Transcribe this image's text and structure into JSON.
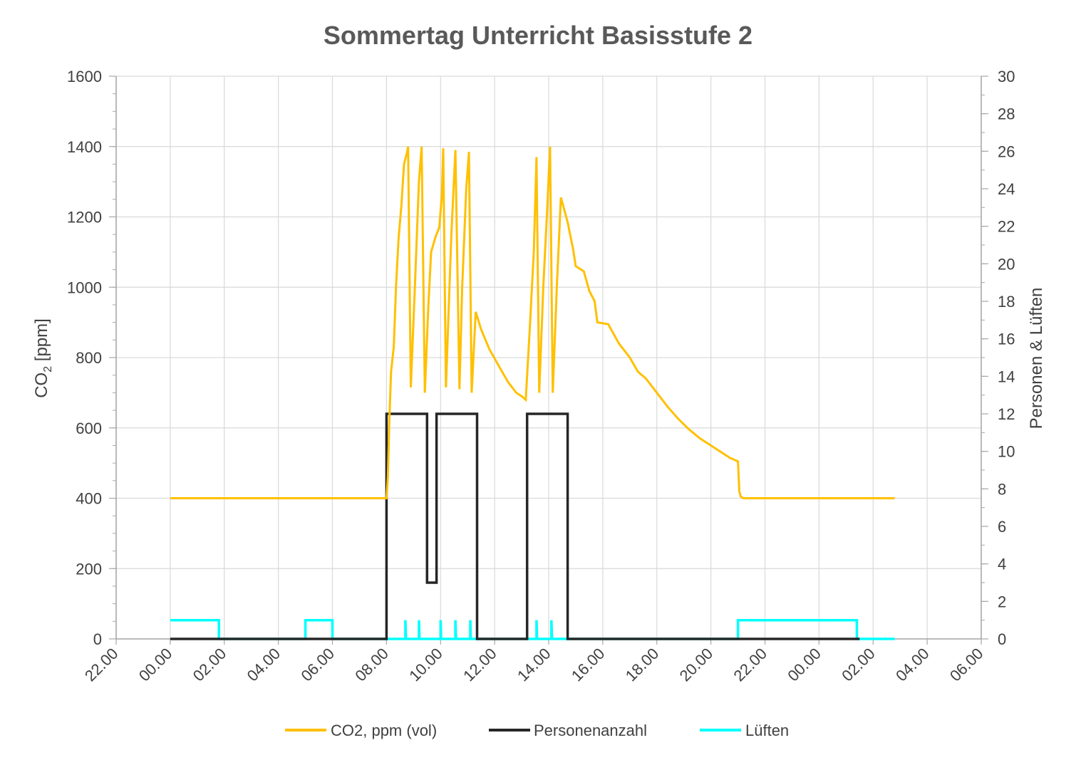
{
  "chart_data": {
    "type": "line",
    "title": "Sommertag Unterricht Basisstufe 2",
    "ylabel_left": "CO2 [ppm]",
    "ylabel_left_prefix": "CO",
    "ylabel_left_subscript": "2",
    "ylabel_left_suffix": " [ppm]",
    "ylabel_right": "Personen & Lüften",
    "x_unit": "hours",
    "xlim": [
      22,
      54
    ],
    "x_ticks": [
      22,
      24,
      26,
      28,
      30,
      32,
      34,
      36,
      38,
      40,
      42,
      44,
      46,
      48,
      50,
      52,
      54
    ],
    "x_tick_labels": [
      "22.00",
      "00.00",
      "02.00",
      "04.00",
      "06.00",
      "08.00",
      "10.00",
      "12.00",
      "14.00",
      "16.00",
      "18.00",
      "20.00",
      "22.00",
      "00.00",
      "02.00",
      "04.00",
      "06.00"
    ],
    "ylim_left": [
      0,
      1600
    ],
    "y_ticks_left": [
      0,
      200,
      400,
      600,
      800,
      1000,
      1200,
      1400,
      1600
    ],
    "ylim_right": [
      0,
      30
    ],
    "y_ticks_right": [
      0,
      2,
      4,
      6,
      8,
      10,
      12,
      14,
      16,
      18,
      20,
      22,
      24,
      26,
      28,
      30
    ],
    "grid": true,
    "legend_position": "bottom",
    "series": [
      {
        "name": "CO2, ppm (vol)",
        "axis": "left",
        "color": "#FFC000",
        "points": [
          [
            24,
            400
          ],
          [
            32,
            400
          ],
          [
            32.05,
            460
          ],
          [
            32.1,
            610
          ],
          [
            32.17,
            760
          ],
          [
            32.27,
            830
          ],
          [
            32.35,
            1000
          ],
          [
            32.45,
            1140
          ],
          [
            32.55,
            1230
          ],
          [
            32.65,
            1350
          ],
          [
            32.75,
            1380
          ],
          [
            32.8,
            1400
          ],
          [
            32.9,
            715
          ],
          [
            33.05,
            1000
          ],
          [
            33.2,
            1300
          ],
          [
            33.3,
            1400
          ],
          [
            33.42,
            700
          ],
          [
            33.55,
            950
          ],
          [
            33.65,
            1100
          ],
          [
            33.8,
            1140
          ],
          [
            33.95,
            1170
          ],
          [
            34.05,
            1260
          ],
          [
            34.1,
            1395
          ],
          [
            34.2,
            715
          ],
          [
            34.4,
            1150
          ],
          [
            34.55,
            1390
          ],
          [
            34.7,
            710
          ],
          [
            34.8,
            1000
          ],
          [
            34.95,
            1280
          ],
          [
            35.05,
            1385
          ],
          [
            35.15,
            700
          ],
          [
            35.3,
            930
          ],
          [
            35.5,
            880
          ],
          [
            35.8,
            825
          ],
          [
            36.2,
            770
          ],
          [
            36.5,
            730
          ],
          [
            36.8,
            700
          ],
          [
            37.0,
            690
          ],
          [
            37.15,
            680
          ],
          [
            37.3,
            880
          ],
          [
            37.45,
            1100
          ],
          [
            37.55,
            1370
          ],
          [
            37.65,
            700
          ],
          [
            37.8,
            1000
          ],
          [
            37.95,
            1230
          ],
          [
            38.05,
            1400
          ],
          [
            38.15,
            700
          ],
          [
            38.3,
            1000
          ],
          [
            38.45,
            1255
          ],
          [
            38.7,
            1185
          ],
          [
            38.9,
            1110
          ],
          [
            39.0,
            1060
          ],
          [
            39.3,
            1045
          ],
          [
            39.5,
            990
          ],
          [
            39.7,
            960
          ],
          [
            39.8,
            900
          ],
          [
            40.2,
            895
          ],
          [
            40.6,
            840
          ],
          [
            41.0,
            800
          ],
          [
            41.3,
            760
          ],
          [
            41.6,
            740
          ],
          [
            42.0,
            700
          ],
          [
            42.4,
            660
          ],
          [
            42.8,
            625
          ],
          [
            43.2,
            595
          ],
          [
            43.6,
            570
          ],
          [
            44.0,
            550
          ],
          [
            44.4,
            530
          ],
          [
            44.7,
            515
          ],
          [
            45.0,
            505
          ],
          [
            45.05,
            420
          ],
          [
            45.1,
            405
          ],
          [
            45.2,
            400
          ],
          [
            50.8,
            400
          ]
        ]
      },
      {
        "name": "Personenanzahl",
        "axis": "right",
        "color": "#262626",
        "points": [
          [
            24,
            0
          ],
          [
            32,
            0
          ],
          [
            32,
            12
          ],
          [
            33.5,
            12
          ],
          [
            33.5,
            3
          ],
          [
            33.85,
            3
          ],
          [
            33.85,
            12
          ],
          [
            35.35,
            12
          ],
          [
            35.35,
            0
          ],
          [
            37.2,
            0
          ],
          [
            37.2,
            12
          ],
          [
            38.7,
            12
          ],
          [
            38.7,
            0
          ],
          [
            49.5,
            0
          ]
        ]
      },
      {
        "name": "Lüften",
        "axis": "right",
        "color": "#00FFFF",
        "points": [
          [
            24,
            1
          ],
          [
            25.8,
            1
          ],
          [
            25.8,
            0
          ],
          [
            29,
            0
          ],
          [
            29,
            1
          ],
          [
            30,
            1
          ],
          [
            30,
            0
          ],
          [
            32.7,
            0
          ],
          [
            32.7,
            1
          ],
          [
            32.72,
            0
          ],
          [
            33.2,
            0
          ],
          [
            33.2,
            1
          ],
          [
            33.22,
            0
          ],
          [
            34.0,
            0
          ],
          [
            34.0,
            1
          ],
          [
            34.02,
            0
          ],
          [
            34.55,
            0
          ],
          [
            34.55,
            1
          ],
          [
            34.57,
            0
          ],
          [
            35.1,
            0
          ],
          [
            35.1,
            1
          ],
          [
            35.12,
            0
          ],
          [
            37.55,
            0
          ],
          [
            37.55,
            1
          ],
          [
            37.57,
            0
          ],
          [
            38.1,
            0
          ],
          [
            38.1,
            1
          ],
          [
            38.12,
            0
          ],
          [
            45.0,
            0
          ],
          [
            45.0,
            1
          ],
          [
            49.4,
            1
          ],
          [
            49.4,
            0
          ],
          [
            50.8,
            0
          ]
        ]
      }
    ]
  }
}
